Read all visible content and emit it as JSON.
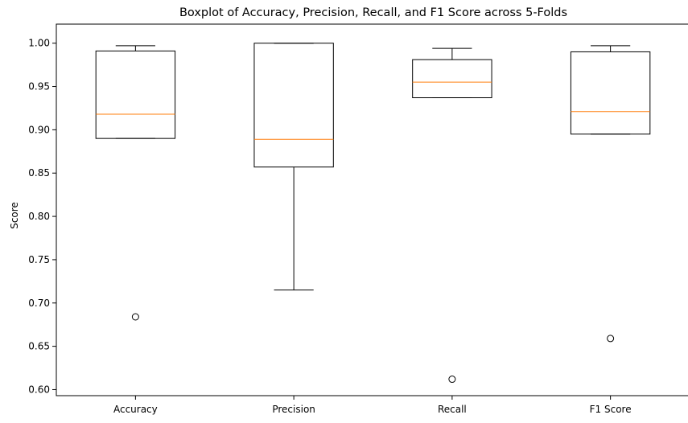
{
  "chart_data": {
    "type": "boxplot",
    "title": "Boxplot of Accuracy, Precision, Recall, and F1 Score across 5-Folds",
    "xlabel": "",
    "ylabel": "Score",
    "ylim": [
      0.593,
      1.022
    ],
    "yticks": [
      "0.60",
      "0.65",
      "0.70",
      "0.75",
      "0.80",
      "0.85",
      "0.90",
      "0.95",
      "1.00"
    ],
    "grid": false,
    "categories": [
      "Accuracy",
      "Precision",
      "Recall",
      "F1 Score"
    ],
    "boxes": [
      {
        "name": "Accuracy",
        "whisker_low": 0.89,
        "q1": 0.89,
        "median": 0.918,
        "q3": 0.991,
        "whisker_high": 0.997,
        "outliers": [
          0.684
        ]
      },
      {
        "name": "Precision",
        "whisker_low": 0.715,
        "q1": 0.857,
        "median": 0.889,
        "q3": 1.0,
        "whisker_high": 1.0,
        "outliers": []
      },
      {
        "name": "Recall",
        "whisker_low": 0.937,
        "q1": 0.937,
        "median": 0.955,
        "q3": 0.981,
        "whisker_high": 0.994,
        "outliers": [
          0.612
        ]
      },
      {
        "name": "F1 Score",
        "whisker_low": 0.895,
        "q1": 0.895,
        "median": 0.921,
        "q3": 0.99,
        "whisker_high": 0.997,
        "outliers": [
          0.659
        ]
      }
    ],
    "colors": {
      "box": "#000000",
      "median": "#ff7f0e",
      "outlier": "#000000"
    }
  }
}
